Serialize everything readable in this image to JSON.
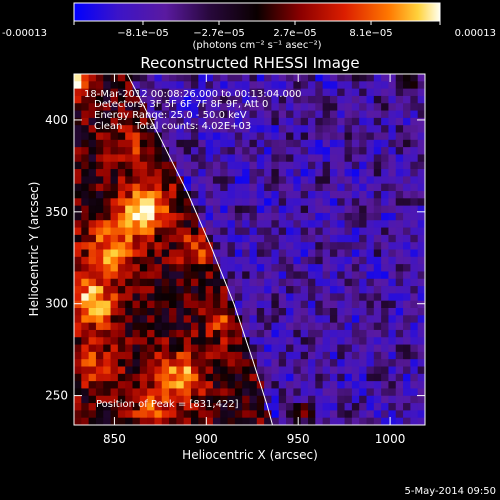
{
  "chart_data": {
    "type": "heatmap",
    "title": "Reconstructed RHESSI Image",
    "xlabel": "Heliocentric X (arcsec)",
    "ylabel": "Heliocentric Y (arcsec)",
    "xlim": [
      828,
      1019
    ],
    "ylim": [
      234,
      425
    ],
    "x_ticks": [
      850,
      900,
      950,
      1000
    ],
    "y_ticks": [
      250,
      300,
      350,
      400
    ],
    "x_tick_labels": [
      "850",
      "900",
      "950",
      "1000"
    ],
    "y_tick_labels": [
      "250",
      "300",
      "350",
      "400"
    ],
    "colorbar": {
      "range": [
        -0.00013,
        0.00013
      ],
      "tick_values": [
        -0.00013,
        -8.1e-05,
        -2.7e-05,
        2.7e-05,
        8.1e-05,
        0.00013
      ],
      "tick_labels": [
        "-0.00013",
        "−8.1e−05",
        "−2.7e−05",
        "2.7e−05",
        "8.1e−05",
        "0.00013"
      ],
      "unit_label": "(photons cm⁻² s⁻¹ asec⁻²)",
      "colors": [
        "#0000ff",
        "#3c14c8",
        "#5a1aa0",
        "#0a0000",
        "#8c0000",
        "#dc1e00",
        "#ff7800",
        "#ffd23c",
        "#fffff0"
      ]
    },
    "annotations": [
      "18-Mar-2012 00:08:26.000 to 00:13:04.000",
      "Detectors: 3F 5F 6F 7F 8F 9F, Att 0",
      "Energy Range: 25.0 - 50.0 keV",
      "Clean    Total counts: 4.02E+03"
    ],
    "peak_label": "Position of Peak = [831,422]",
    "peak": [
      831,
      422
    ],
    "limb_curve": [
      [
        857,
        425
      ],
      [
        875,
        390
      ],
      [
        890,
        360
      ],
      [
        903,
        330
      ],
      [
        915,
        300
      ],
      [
        925,
        270
      ],
      [
        933,
        245
      ],
      [
        936,
        234
      ]
    ],
    "footer": "5-May-2014 09:50"
  }
}
